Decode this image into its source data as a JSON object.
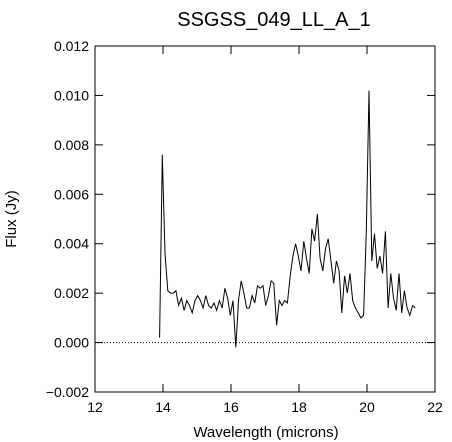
{
  "chart_data": {
    "type": "line",
    "title": "SSGSS_049_LL_A_1",
    "xlabel": "Wavelength (microns)",
    "ylabel": "Flux (Jy)",
    "xlim": [
      12,
      22
    ],
    "ylim": [
      -0.002,
      0.012
    ],
    "xticks": [
      "12",
      "14",
      "16",
      "18",
      "20",
      "22"
    ],
    "yticks": [
      "−0.002",
      "0.000",
      "0.002",
      "0.004",
      "0.006",
      "0.008",
      "0.010",
      "0.012"
    ],
    "zero_line": "dotted",
    "grid": false,
    "series": [
      {
        "x": [
          13.9,
          13.98,
          14.06,
          14.14,
          14.22,
          14.3,
          14.38,
          14.46,
          14.54,
          14.62,
          14.7,
          14.78,
          14.86,
          14.94,
          15.02,
          15.1,
          15.18,
          15.26,
          15.34,
          15.42,
          15.5,
          15.58,
          15.66,
          15.74,
          15.82,
          15.9,
          15.98,
          16.06,
          16.14,
          16.22,
          16.3,
          16.38,
          16.46,
          16.54,
          16.62,
          16.7,
          16.78,
          16.86,
          16.94,
          17.02,
          17.1,
          17.18,
          17.26,
          17.34,
          17.42,
          17.5,
          17.58,
          17.66,
          17.74,
          17.82,
          17.9,
          17.98,
          18.06,
          18.14,
          18.22,
          18.3,
          18.38,
          18.46,
          18.54,
          18.62,
          18.7,
          18.78,
          18.86,
          18.94,
          19.02,
          19.1,
          19.18,
          19.26,
          19.34,
          19.42,
          19.5,
          19.58,
          19.66,
          19.74,
          19.82,
          19.9,
          19.98,
          20.06,
          20.14,
          20.22,
          20.3,
          20.38,
          20.46,
          20.54,
          20.62,
          20.7,
          20.78,
          20.86,
          20.94,
          21.02,
          21.1,
          21.18,
          21.26,
          21.34,
          21.42
        ],
        "y": [
          0.0002,
          0.0076,
          0.0036,
          0.0021,
          0.002,
          0.002,
          0.0021,
          0.0015,
          0.0018,
          0.0013,
          0.0017,
          0.0015,
          0.0012,
          0.0017,
          0.0019,
          0.0017,
          0.0014,
          0.0019,
          0.0015,
          0.0014,
          0.0016,
          0.0013,
          0.0017,
          0.0014,
          0.0022,
          0.0018,
          0.0011,
          0.0017,
          -0.0002,
          0.0017,
          0.0025,
          0.002,
          0.0014,
          0.0014,
          0.0019,
          0.0016,
          0.0023,
          0.0022,
          0.0023,
          0.0015,
          0.0019,
          0.0025,
          0.0024,
          0.0007,
          0.0017,
          0.0015,
          0.0017,
          0.0016,
          0.0027,
          0.0035,
          0.004,
          0.0035,
          0.0029,
          0.0041,
          0.0034,
          0.0028,
          0.0046,
          0.0041,
          0.0052,
          0.0034,
          0.0029,
          0.0038,
          0.0042,
          0.0033,
          0.0024,
          0.0033,
          0.0029,
          0.0012,
          0.0027,
          0.002,
          0.0028,
          0.0017,
          0.0014,
          0.0012,
          0.001,
          0.0011,
          0.0045,
          0.0102,
          0.0033,
          0.0044,
          0.003,
          0.0035,
          0.0028,
          0.0045,
          0.0014,
          0.0028,
          0.0018,
          0.0013,
          0.0028,
          0.0012,
          0.0021,
          0.0014,
          0.0011,
          0.0015,
          0.0014
        ]
      }
    ]
  }
}
